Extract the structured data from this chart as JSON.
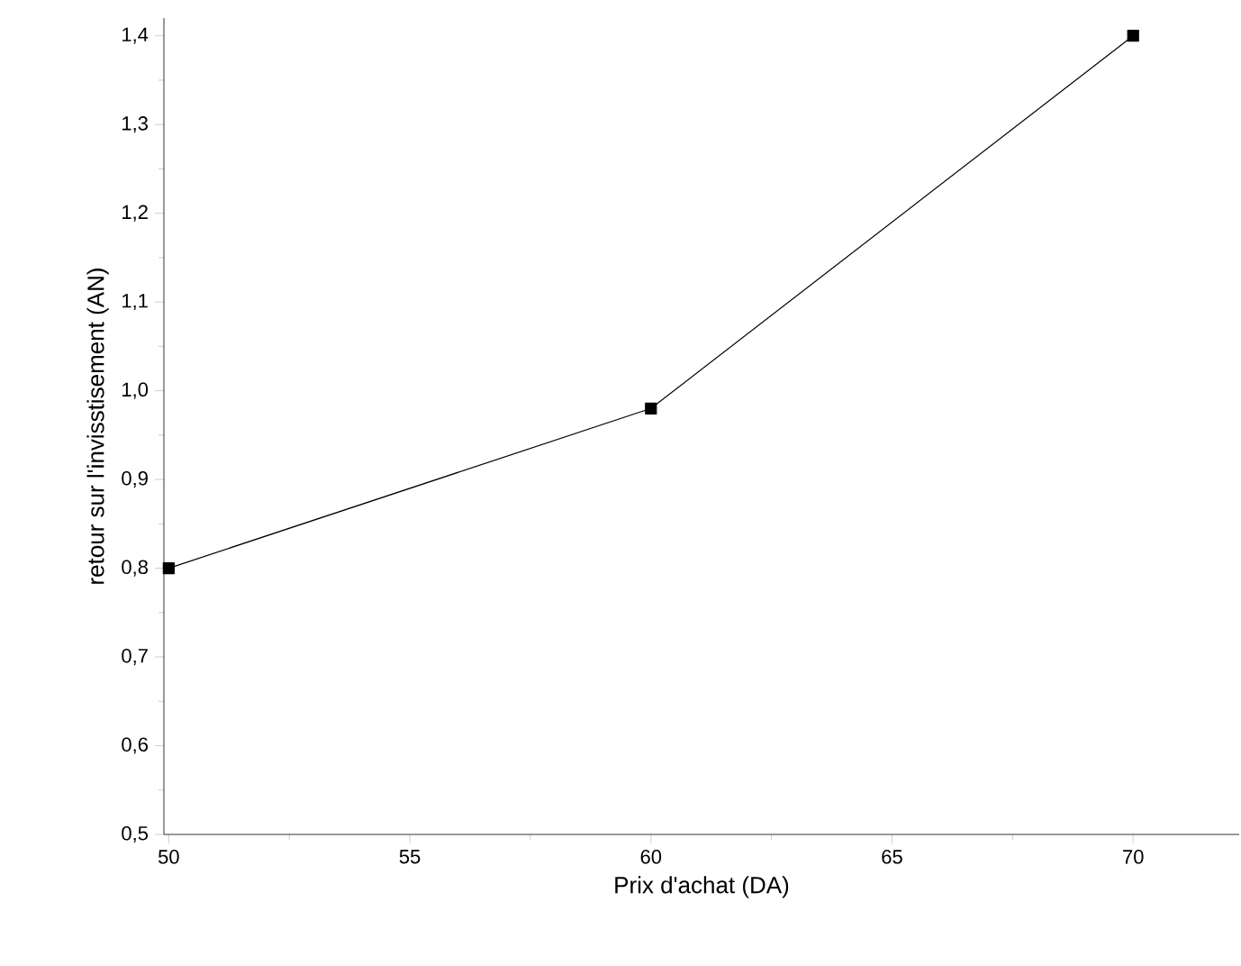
{
  "chart_data": {
    "type": "line",
    "xlabel": "Prix d'achat (DA)",
    "ylabel": "retour sur l'invisstisement (AN)",
    "x": [
      50,
      60,
      70
    ],
    "series": [
      {
        "color": "#000000",
        "values": [
          0.8,
          0.98,
          1.4
        ]
      }
    ],
    "marker": "square",
    "line_style": "solid",
    "grid": false,
    "xlim": [
      49.9,
      72.2
    ],
    "xticks": [
      50,
      55,
      60,
      65,
      70
    ],
    "ylim": [
      0.5,
      1.42
    ],
    "yticks": [
      {
        "value": 0.5,
        "label": "0,5"
      },
      {
        "value": 0.6,
        "label": "0,6"
      },
      {
        "value": 0.7,
        "label": "0,7"
      },
      {
        "value": 0.8,
        "label": "0,8"
      },
      {
        "value": 0.9,
        "label": "0,9"
      },
      {
        "value": 1.0,
        "label": "1,0"
      },
      {
        "value": 1.1,
        "label": "1,1"
      },
      {
        "value": 1.2,
        "label": "1,2"
      },
      {
        "value": 1.3,
        "label": "1,3"
      },
      {
        "value": 1.4,
        "label": "1,4"
      }
    ]
  }
}
